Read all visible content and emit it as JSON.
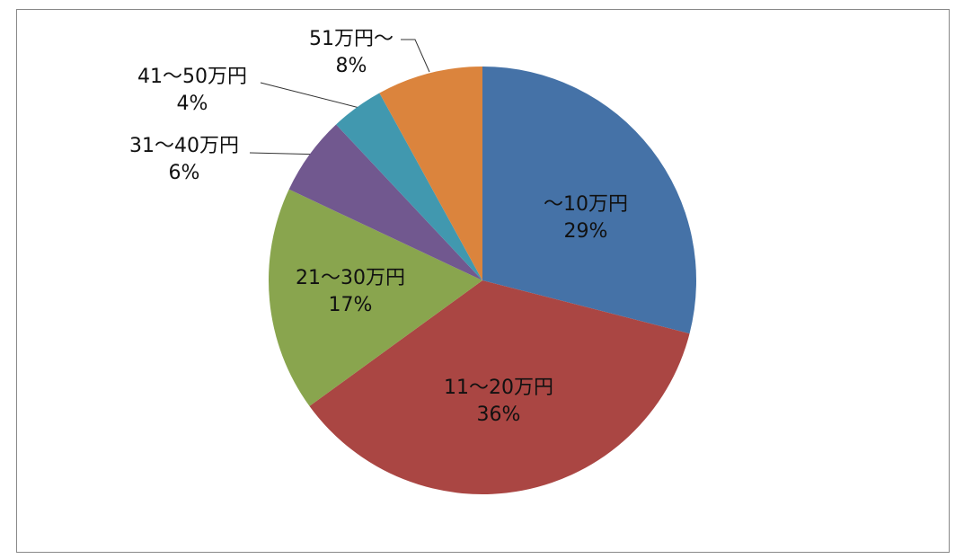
{
  "chart_data": {
    "type": "pie",
    "categories": [
      "～10万円",
      "11～20万円",
      "21～30万円",
      "31～40万円",
      "41～50万円",
      "51万円～"
    ],
    "values": [
      29,
      36,
      17,
      6,
      4,
      8
    ],
    "value_labels": [
      "29%",
      "36%",
      "17%",
      "6%",
      "4%",
      "8%"
    ],
    "colors": [
      "#4572A7",
      "#AA4643",
      "#89A54E",
      "#71588F",
      "#4198AF",
      "#DB843D"
    ]
  }
}
